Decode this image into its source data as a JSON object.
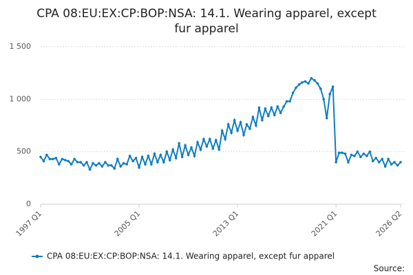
{
  "chart_data": {
    "type": "line",
    "title_lines": [
      "CPA 08:EU:EX:CP:BOP:NSA: 14.1. Wearing apparel, except",
      "fur apparel"
    ],
    "categories": [
      "1997 Q1",
      null,
      null,
      null,
      null,
      null,
      null,
      null,
      null,
      null,
      null,
      null,
      null,
      null,
      null,
      null,
      null,
      null,
      null,
      null,
      null,
      null,
      null,
      null,
      null,
      null,
      null,
      null,
      null,
      null,
      null,
      null,
      "2005 Q1",
      null,
      null,
      null,
      null,
      null,
      null,
      null,
      null,
      null,
      null,
      null,
      null,
      null,
      null,
      null,
      null,
      null,
      null,
      null,
      null,
      null,
      null,
      null,
      null,
      null,
      null,
      null,
      null,
      null,
      null,
      null,
      "2013 Q1",
      null,
      null,
      null,
      null,
      null,
      null,
      null,
      null,
      null,
      null,
      null,
      null,
      null,
      null,
      null,
      null,
      null,
      null,
      null,
      null,
      null,
      null,
      null,
      null,
      null,
      null,
      null,
      null,
      null,
      null,
      null,
      "2021 Q1",
      null,
      null,
      null,
      null,
      null,
      null,
      null,
      null,
      null,
      null,
      null,
      null,
      null,
      null,
      null,
      null,
      null,
      null,
      null,
      null,
      "2026 Q2"
    ],
    "series": [
      {
        "name": "CPA 08:EU:EX:CP:BOP:NSA: 14.1. Wearing apparel, except fur apparel",
        "color": "#0f7dbf",
        "values": [
          450,
          410,
          470,
          430,
          430,
          440,
          380,
          430,
          420,
          410,
          380,
          430,
          400,
          400,
          370,
          400,
          330,
          390,
          370,
          390,
          360,
          400,
          370,
          370,
          340,
          430,
          360,
          390,
          380,
          460,
          410,
          440,
          350,
          450,
          380,
          460,
          380,
          480,
          400,
          470,
          400,
          500,
          420,
          520,
          440,
          580,
          450,
          560,
          470,
          540,
          460,
          590,
          520,
          620,
          550,
          620,
          530,
          610,
          520,
          700,
          620,
          760,
          680,
          800,
          700,
          780,
          660,
          760,
          720,
          830,
          750,
          920,
          800,
          910,
          840,
          920,
          850,
          930,
          870,
          930,
          980,
          980,
          1060,
          1110,
          1140,
          1160,
          1170,
          1150,
          1200,
          1180,
          1150,
          1100,
          1000,
          820,
          1050,
          1120,
          400,
          490,
          490,
          480,
          400,
          470,
          460,
          500,
          450,
          480,
          460,
          500,
          410,
          440,
          400,
          430,
          360,
          430,
          380,
          400,
          370,
          400
        ]
      }
    ],
    "ylim": [
      0,
      1500
    ],
    "yticks": [
      0,
      500,
      {
        "value": 1000,
        "label": "1 000"
      },
      {
        "value": 1500,
        "label": "1 500"
      }
    ],
    "grid": true,
    "source": "Source:"
  }
}
